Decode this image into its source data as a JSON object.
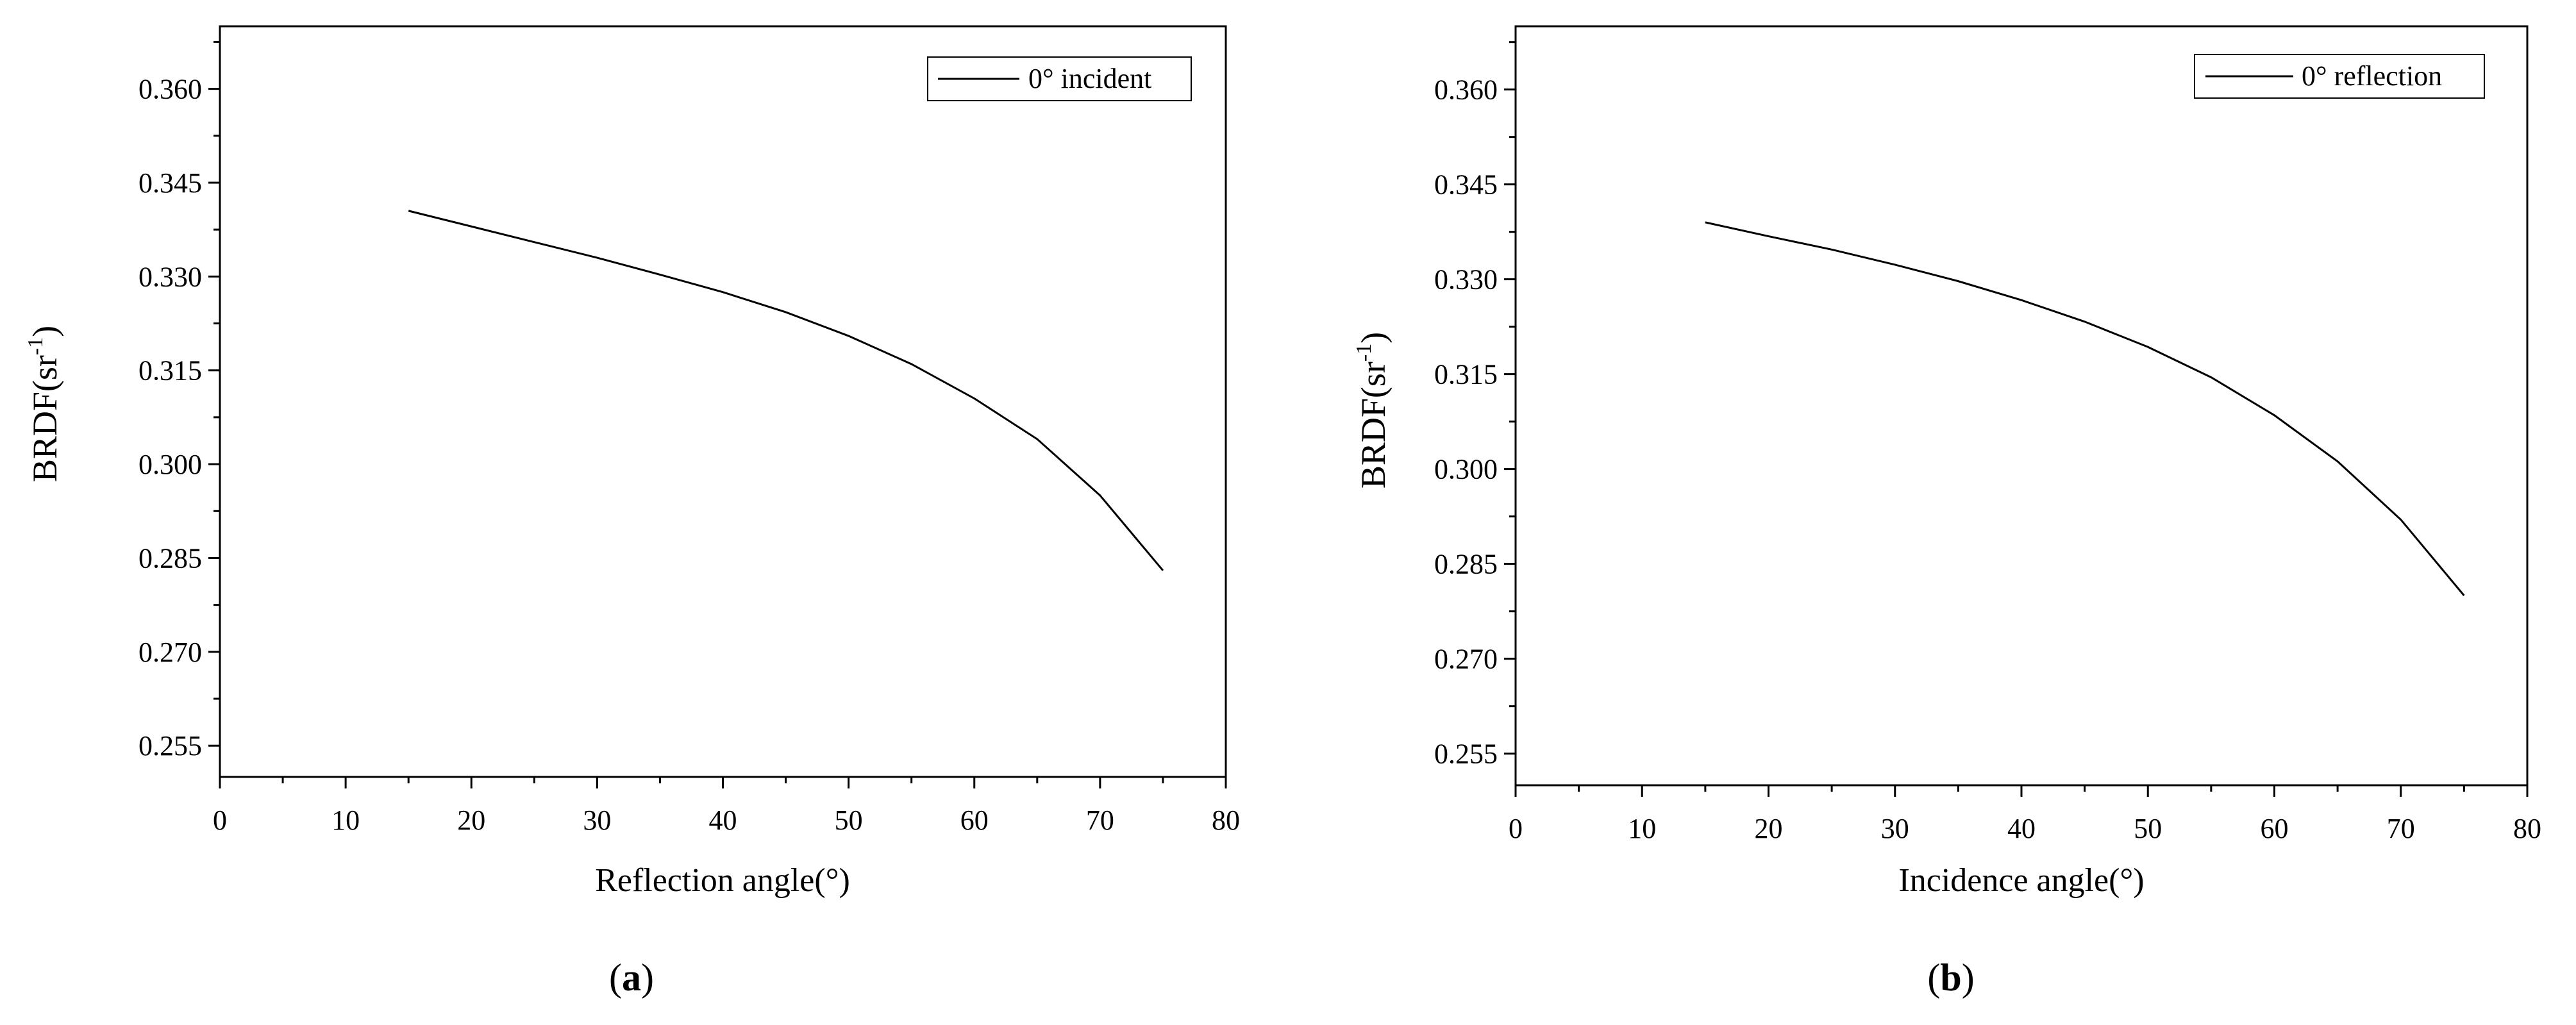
{
  "chart_data": [
    {
      "type": "line",
      "panel_label": "a",
      "x": [
        15,
        20,
        25,
        30,
        35,
        40,
        45,
        50,
        55,
        60,
        65,
        70,
        75
      ],
      "series": [
        {
          "name": "0° incident",
          "values": [
            0.3405,
            0.338,
            0.3355,
            0.333,
            0.3303,
            0.3275,
            0.3243,
            0.3205,
            0.316,
            0.3105,
            0.304,
            0.295,
            0.283
          ]
        }
      ],
      "xlabel": "Reflection angle(°)",
      "ylabel": "BRDF(sr-1)",
      "ylabel_base": "BRDF(sr",
      "ylabel_sup": "-1",
      "ylabel_close": ")",
      "xlim": [
        0,
        80
      ],
      "ylim": [
        0.25,
        0.37
      ],
      "xticks": [
        0,
        10,
        20,
        30,
        40,
        50,
        60,
        70,
        80
      ],
      "yticks": [
        0.255,
        0.27,
        0.285,
        0.3,
        0.315,
        0.33,
        0.345,
        0.36
      ],
      "xtick_labels": [
        "0",
        "10",
        "20",
        "30",
        "40",
        "50",
        "60",
        "70",
        "80"
      ],
      "ytick_labels": [
        "0.255",
        "0.270",
        "0.285",
        "0.300",
        "0.315",
        "0.330",
        "0.345",
        "0.360"
      ],
      "grid": false,
      "legend_position": "top-right",
      "line_color": "#000000"
    },
    {
      "type": "line",
      "panel_label": "b",
      "x": [
        15,
        20,
        25,
        30,
        35,
        40,
        45,
        50,
        55,
        60,
        65,
        70,
        75
      ],
      "series": [
        {
          "name": "0° reflection",
          "values": [
            0.339,
            0.3368,
            0.3347,
            0.3323,
            0.3297,
            0.3267,
            0.3233,
            0.3193,
            0.3145,
            0.3085,
            0.3012,
            0.292,
            0.28
          ]
        }
      ],
      "xlabel": "Incidence angle(°)",
      "ylabel": "BRDF(sr-1)",
      "ylabel_base": "BRDF(sr",
      "ylabel_sup": "-1",
      "ylabel_close": ")",
      "xlim": [
        0,
        80
      ],
      "ylim": [
        0.25,
        0.37
      ],
      "xticks": [
        0,
        10,
        20,
        30,
        40,
        50,
        60,
        70,
        80
      ],
      "yticks": [
        0.255,
        0.27,
        0.285,
        0.3,
        0.315,
        0.33,
        0.345,
        0.36
      ],
      "xtick_labels": [
        "0",
        "10",
        "20",
        "30",
        "40",
        "50",
        "60",
        "70",
        "80"
      ],
      "ytick_labels": [
        "0.255",
        "0.270",
        "0.285",
        "0.300",
        "0.315",
        "0.330",
        "0.345",
        "0.360"
      ],
      "grid": false,
      "legend_position": "top-right",
      "line_color": "#000000"
    }
  ]
}
